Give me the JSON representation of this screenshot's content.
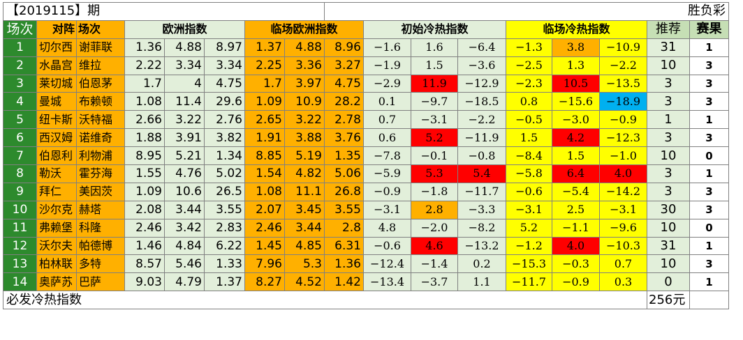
{
  "header": {
    "period": "【2019115】期",
    "game_type": "胜负彩"
  },
  "columns": {
    "index": "场次",
    "matchup": "对阵",
    "match": "场次",
    "euro": "欧洲指数",
    "live_euro": "临场欧洲指数",
    "init_cold": "初始冷热指数",
    "live_cold": "临场冷热指数",
    "recommend": "推荐",
    "result": "赛果"
  },
  "rows": [
    {
      "idx": "1",
      "home": "切尔西",
      "away": "谢菲联",
      "e": [
        "1.36",
        "4.88",
        "8.97"
      ],
      "l": [
        "1.37",
        "4.88",
        "8.96"
      ],
      "i": [
        "−1.6",
        "1.6",
        "−6.4"
      ],
      "c": [
        "−1.3",
        "3.8",
        "−10.9"
      ],
      "rec": "31",
      "res": "1"
    },
    {
      "idx": "2",
      "home": "水晶宫",
      "away": "维拉",
      "e": [
        "2.22",
        "3.34",
        "3.34"
      ],
      "l": [
        "2.25",
        "3.36",
        "3.27"
      ],
      "i": [
        "−1.9",
        "1.5",
        "−3.6"
      ],
      "c": [
        "−2.5",
        "1.3",
        "−2.2"
      ],
      "rec": "10",
      "res": "3"
    },
    {
      "idx": "3",
      "home": "莱切城",
      "away": "伯恩茅",
      "e": [
        "1.7",
        "4",
        "4.75"
      ],
      "l": [
        "1.7",
        "3.97",
        "4.75"
      ],
      "i": [
        "−2.9",
        "11.9",
        "−12.9"
      ],
      "c": [
        "−2.3",
        "10.5",
        "−13.5"
      ],
      "rec": "3",
      "res": "3"
    },
    {
      "idx": "4",
      "home": "曼城",
      "away": "布赖顿",
      "e": [
        "1.08",
        "11.4",
        "29.6"
      ],
      "l": [
        "1.09",
        "10.9",
        "28.2"
      ],
      "i": [
        "0.1",
        "−9.7",
        "−18.5"
      ],
      "c": [
        "0.8",
        "−15.6",
        "−18.9"
      ],
      "rec": "3",
      "res": "3"
    },
    {
      "idx": "5",
      "home": "纽卡斯",
      "away": "沃特福",
      "e": [
        "2.66",
        "3.22",
        "2.76"
      ],
      "l": [
        "2.65",
        "3.22",
        "2.78"
      ],
      "i": [
        "0.7",
        "−3.1",
        "−2.2"
      ],
      "c": [
        "−0.5",
        "−3.0",
        "−0.9"
      ],
      "rec": "1",
      "res": "1"
    },
    {
      "idx": "6",
      "home": "西汉姆",
      "away": "诺维奇",
      "e": [
        "1.88",
        "3.91",
        "3.82"
      ],
      "l": [
        "1.91",
        "3.88",
        "3.76"
      ],
      "i": [
        "0.6",
        "5.2",
        "−11.9"
      ],
      "c": [
        "1.5",
        "4.2",
        "−12.3"
      ],
      "rec": "3",
      "res": "3"
    },
    {
      "idx": "7",
      "home": "伯恩利",
      "away": "利物浦",
      "e": [
        "8.95",
        "5.21",
        "1.34"
      ],
      "l": [
        "8.85",
        "5.19",
        "1.35"
      ],
      "i": [
        "−7.8",
        "−0.1",
        "−0.8"
      ],
      "c": [
        "−8.4",
        "1.5",
        "−1.0"
      ],
      "rec": "10",
      "res": "0"
    },
    {
      "idx": "8",
      "home": "勒沃",
      "away": "霍芬海",
      "e": [
        "1.55",
        "4.76",
        "5.02"
      ],
      "l": [
        "1.54",
        "4.82",
        "5.06"
      ],
      "i": [
        "−5.9",
        "5.3",
        "5.4"
      ],
      "c": [
        "−5.8",
        "6.4",
        "4.0"
      ],
      "rec": "3",
      "res": "1"
    },
    {
      "idx": "9",
      "home": "拜仁",
      "away": "美因茨",
      "e": [
        "1.09",
        "10.6",
        "26.5"
      ],
      "l": [
        "1.08",
        "11.1",
        "26.8"
      ],
      "i": [
        "−0.9",
        "−1.8",
        "−11.7"
      ],
      "c": [
        "−0.6",
        "−5.4",
        "−14.2"
      ],
      "rec": "3",
      "res": "3"
    },
    {
      "idx": "10",
      "home": "沙尔克",
      "away": "赫塔",
      "e": [
        "2.08",
        "3.44",
        "3.55"
      ],
      "l": [
        "2.07",
        "3.45",
        "3.55"
      ],
      "i": [
        "−3.1",
        "2.8",
        "−3.3"
      ],
      "c": [
        "−3.1",
        "2.5",
        "−3.1"
      ],
      "rec": "30",
      "res": "3"
    },
    {
      "idx": "11",
      "home": "弗赖堡",
      "away": "科隆",
      "e": [
        "2.46",
        "3.42",
        "2.83"
      ],
      "l": [
        "2.46",
        "3.44",
        "2.8"
      ],
      "i": [
        "4.8",
        "−2.0",
        "−8.2"
      ],
      "c": [
        "5.2",
        "−1.1",
        "−9.6"
      ],
      "rec": "10",
      "res": "0"
    },
    {
      "idx": "12",
      "home": "沃尔夫",
      "away": "帕德博",
      "e": [
        "1.46",
        "4.84",
        "6.22"
      ],
      "l": [
        "1.45",
        "4.85",
        "6.31"
      ],
      "i": [
        "−0.6",
        "4.6",
        "−13.2"
      ],
      "c": [
        "−1.2",
        "4.0",
        "−10.3"
      ],
      "rec": "31",
      "res": "1"
    },
    {
      "idx": "13",
      "home": "柏林联",
      "away": "多特",
      "e": [
        "8.57",
        "5.46",
        "1.33"
      ],
      "l": [
        "7.96",
        "5.3",
        "1.36"
      ],
      "i": [
        "−12.4",
        "−1.4",
        "0.2"
      ],
      "c": [
        "−15.3",
        "−0.3",
        "0.7"
      ],
      "rec": "10",
      "res": "3"
    },
    {
      "idx": "14",
      "home": "奥萨苏",
      "away": "巴萨",
      "e": [
        "9.03",
        "4.79",
        "1.37"
      ],
      "l": [
        "8.27",
        "4.52",
        "1.42"
      ],
      "i": [
        "−13.4",
        "−3.7",
        "1.1"
      ],
      "c": [
        "−11.7",
        "−0.9",
        "0.3"
      ],
      "rec": "0",
      "res": "1"
    }
  ],
  "highlights": {
    "red": "#ff0000",
    "orange": "#ffb000",
    "blue": "#00b0f0",
    "cells": [
      {
        "row": 0,
        "group": "c",
        "col": 1,
        "color": "orange"
      },
      {
        "row": 2,
        "group": "i",
        "col": 1,
        "color": "red"
      },
      {
        "row": 2,
        "group": "c",
        "col": 1,
        "color": "red"
      },
      {
        "row": 3,
        "group": "c",
        "col": 2,
        "color": "blue"
      },
      {
        "row": 5,
        "group": "i",
        "col": 1,
        "color": "red"
      },
      {
        "row": 5,
        "group": "c",
        "col": 1,
        "color": "red"
      },
      {
        "row": 7,
        "group": "i",
        "col": 1,
        "color": "red"
      },
      {
        "row": 7,
        "group": "i",
        "col": 2,
        "color": "red"
      },
      {
        "row": 7,
        "group": "c",
        "col": 1,
        "color": "red"
      },
      {
        "row": 7,
        "group": "c",
        "col": 2,
        "color": "red"
      },
      {
        "row": 9,
        "group": "i",
        "col": 1,
        "color": "orange"
      },
      {
        "row": 11,
        "group": "i",
        "col": 1,
        "color": "red"
      },
      {
        "row": 11,
        "group": "c",
        "col": 1,
        "color": "red"
      }
    ]
  },
  "footer": {
    "label": "必发冷热指数",
    "amount": "256元"
  }
}
